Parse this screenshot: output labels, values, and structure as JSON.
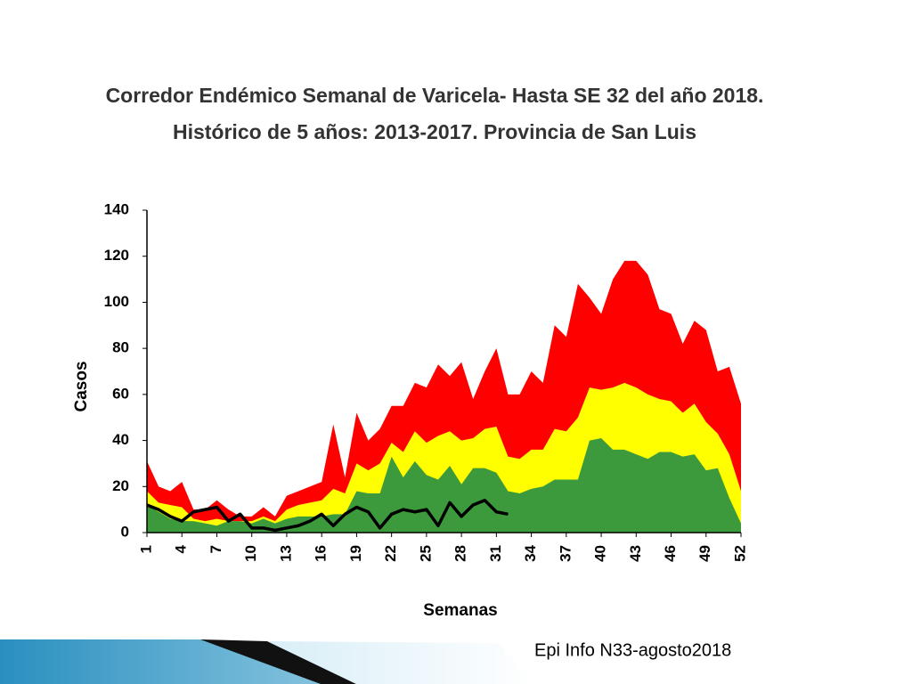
{
  "chart_data": {
    "type": "area",
    "title": "Corredor Endémico Semanal de Varicela- Hasta SE  32 del año 2018.",
    "subtitle": "Histórico de 5 años: 2013-2017. Provincia de San Luis",
    "x_label": "Semanas",
    "y_label": "Casos",
    "x": [
      1,
      2,
      3,
      4,
      5,
      6,
      7,
      8,
      9,
      10,
      11,
      12,
      13,
      14,
      15,
      16,
      17,
      18,
      19,
      20,
      21,
      22,
      23,
      24,
      25,
      26,
      27,
      28,
      29,
      30,
      31,
      32,
      33,
      34,
      35,
      36,
      37,
      38,
      39,
      40,
      41,
      42,
      43,
      44,
      45,
      46,
      47,
      48,
      49,
      50,
      51,
      52
    ],
    "series": [
      {
        "color": "#ff0000",
        "values": [
          31,
          20,
          18,
          22,
          10,
          10,
          14,
          10,
          7,
          7,
          11,
          7,
          16,
          18,
          20,
          22,
          47,
          24,
          52,
          40,
          45,
          55,
          55,
          65,
          63,
          73,
          68,
          74,
          58,
          70,
          80,
          60,
          60,
          70,
          65,
          90,
          85,
          108,
          102,
          95,
          110,
          118,
          118,
          112,
          97,
          95,
          82,
          92,
          88,
          70,
          72,
          56
        ]
      },
      {
        "color": "#ffff00",
        "values": [
          18,
          13,
          12,
          11,
          6,
          5,
          6,
          5,
          5,
          5,
          7,
          5,
          10,
          12,
          13,
          14,
          19,
          17,
          30,
          27,
          30,
          39,
          35,
          44,
          39,
          42,
          44,
          40,
          41,
          45,
          46,
          33,
          32,
          36,
          36,
          45,
          44,
          50,
          63,
          62,
          63,
          65,
          63,
          60,
          58,
          57,
          52,
          56,
          48,
          43,
          34,
          18
        ]
      },
      {
        "color": "#3c9a3c",
        "values": [
          12,
          9,
          6,
          5,
          5,
          4,
          3,
          5,
          5,
          4,
          6,
          4,
          6,
          7,
          7,
          7,
          8,
          8,
          18,
          17,
          17,
          33,
          24,
          31,
          25,
          23,
          29,
          21,
          28,
          28,
          26,
          18,
          17,
          19,
          20,
          23,
          23,
          23,
          40,
          41,
          36,
          36,
          34,
          32,
          35,
          35,
          33,
          34,
          27,
          28,
          15,
          4
        ]
      },
      {
        "color": "#000000",
        "line": true,
        "values": [
          12,
          10,
          7,
          5,
          9,
          10,
          11,
          5,
          8,
          2,
          2,
          1,
          2,
          3,
          5,
          8,
          3,
          8,
          11,
          9,
          2,
          8,
          10,
          9,
          10,
          3,
          13,
          7,
          12,
          14,
          9,
          8,
          null,
          null,
          null,
          null,
          null,
          null,
          null,
          null,
          null,
          null,
          null,
          null,
          null,
          null,
          null,
          null,
          null,
          null,
          null,
          null
        ]
      }
    ],
    "xlim": [
      1,
      52
    ],
    "xticks": [
      1,
      4,
      7,
      10,
      13,
      16,
      19,
      22,
      25,
      28,
      31,
      34,
      37,
      40,
      43,
      46,
      49,
      52
    ],
    "ylim": [
      0,
      140
    ],
    "yticks": [
      0,
      20,
      40,
      60,
      80,
      100,
      120,
      140
    ]
  },
  "footer": "Epi Info N33-agosto2018"
}
